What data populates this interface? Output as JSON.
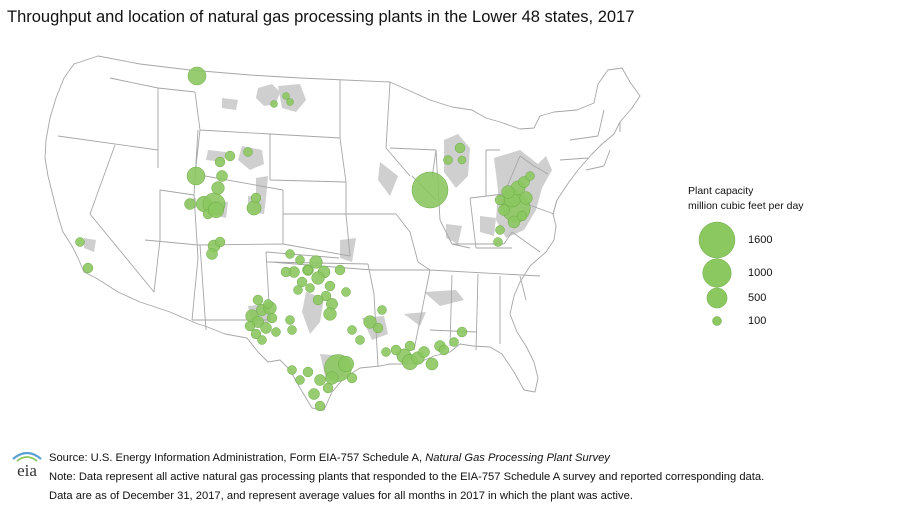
{
  "title": "Throughput and location of natural gas processing plants in the Lower 48 states, 2017",
  "legend": {
    "title_line1": "Plant capacity",
    "title_line2": "million cubic feet per day",
    "items": [
      {
        "value": 1600,
        "label": "1600"
      },
      {
        "value": 1000,
        "label": "1000"
      },
      {
        "value": 500,
        "label": "500"
      },
      {
        "value": 100,
        "label": "100"
      }
    ]
  },
  "footer": {
    "source_prefix": "Source: U.S. Energy Information Administration, Form EIA-757 Schedule A, ",
    "source_title": "Natural Gas Processing Plant Survey",
    "note_line1": "Note: Data represent all active natural gas processing plants that responded to the EIA-757 Schedule A survey and reported corresponding data.",
    "note_line2": "Data are as of December 31, 2017, and represent average values for all months in 2017 in which the plant was active."
  },
  "logo_text": "eia",
  "colors": {
    "plant": "#8cc860",
    "plant_stroke": "#6aa946",
    "basin": "#cfcfcf",
    "border": "#a6a6a6",
    "text": "#111111",
    "logo_arc": "#5aa0d0"
  },
  "icons": [
    "eia-logo-icon"
  ]
}
